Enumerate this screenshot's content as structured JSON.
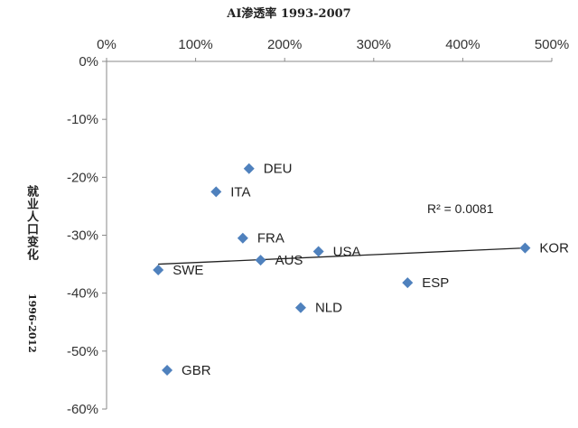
{
  "chart_data": {
    "type": "scatter",
    "title": "AI渗透率 1993-2007",
    "ylabel": "就业人口变化",
    "ylabel_sub": "1996-2012",
    "xlim": [
      0,
      500
    ],
    "ylim": [
      -60,
      0
    ],
    "x_unit": "%",
    "y_unit": "%",
    "x_ticks": [
      0,
      100,
      200,
      300,
      400,
      500
    ],
    "y_ticks": [
      0,
      -10,
      -20,
      -30,
      -40,
      -50,
      -60
    ],
    "x_tick_labels": [
      "0%",
      "100%",
      "200%",
      "300%",
      "400%",
      "500%"
    ],
    "y_tick_labels": [
      "0%",
      "-10%",
      "-20%",
      "-30%",
      "-40%",
      "-50%",
      "-60%"
    ],
    "x_axis_position": "top",
    "grid": false,
    "marker_color": "#4f81bd",
    "points": [
      {
        "label": "DEU",
        "x": 160,
        "y": -18.5
      },
      {
        "label": "ITA",
        "x": 123,
        "y": -22.5
      },
      {
        "label": "FRA",
        "x": 153,
        "y": -30.5
      },
      {
        "label": "SWE",
        "x": 58,
        "y": -36
      },
      {
        "label": "AUS",
        "x": 173,
        "y": -34.3
      },
      {
        "label": "USA",
        "x": 238,
        "y": -32.8
      },
      {
        "label": "KOR",
        "x": 470,
        "y": -32.2
      },
      {
        "label": "ESP",
        "x": 338,
        "y": -38.2
      },
      {
        "label": "NLD",
        "x": 218,
        "y": -42.5
      },
      {
        "label": "GBR",
        "x": 68,
        "y": -53.3
      }
    ],
    "trendline": {
      "x": [
        58,
        470
      ],
      "y": [
        -35,
        -32.2
      ],
      "color": "#222222"
    },
    "annotation": "R² = 0.0081"
  }
}
